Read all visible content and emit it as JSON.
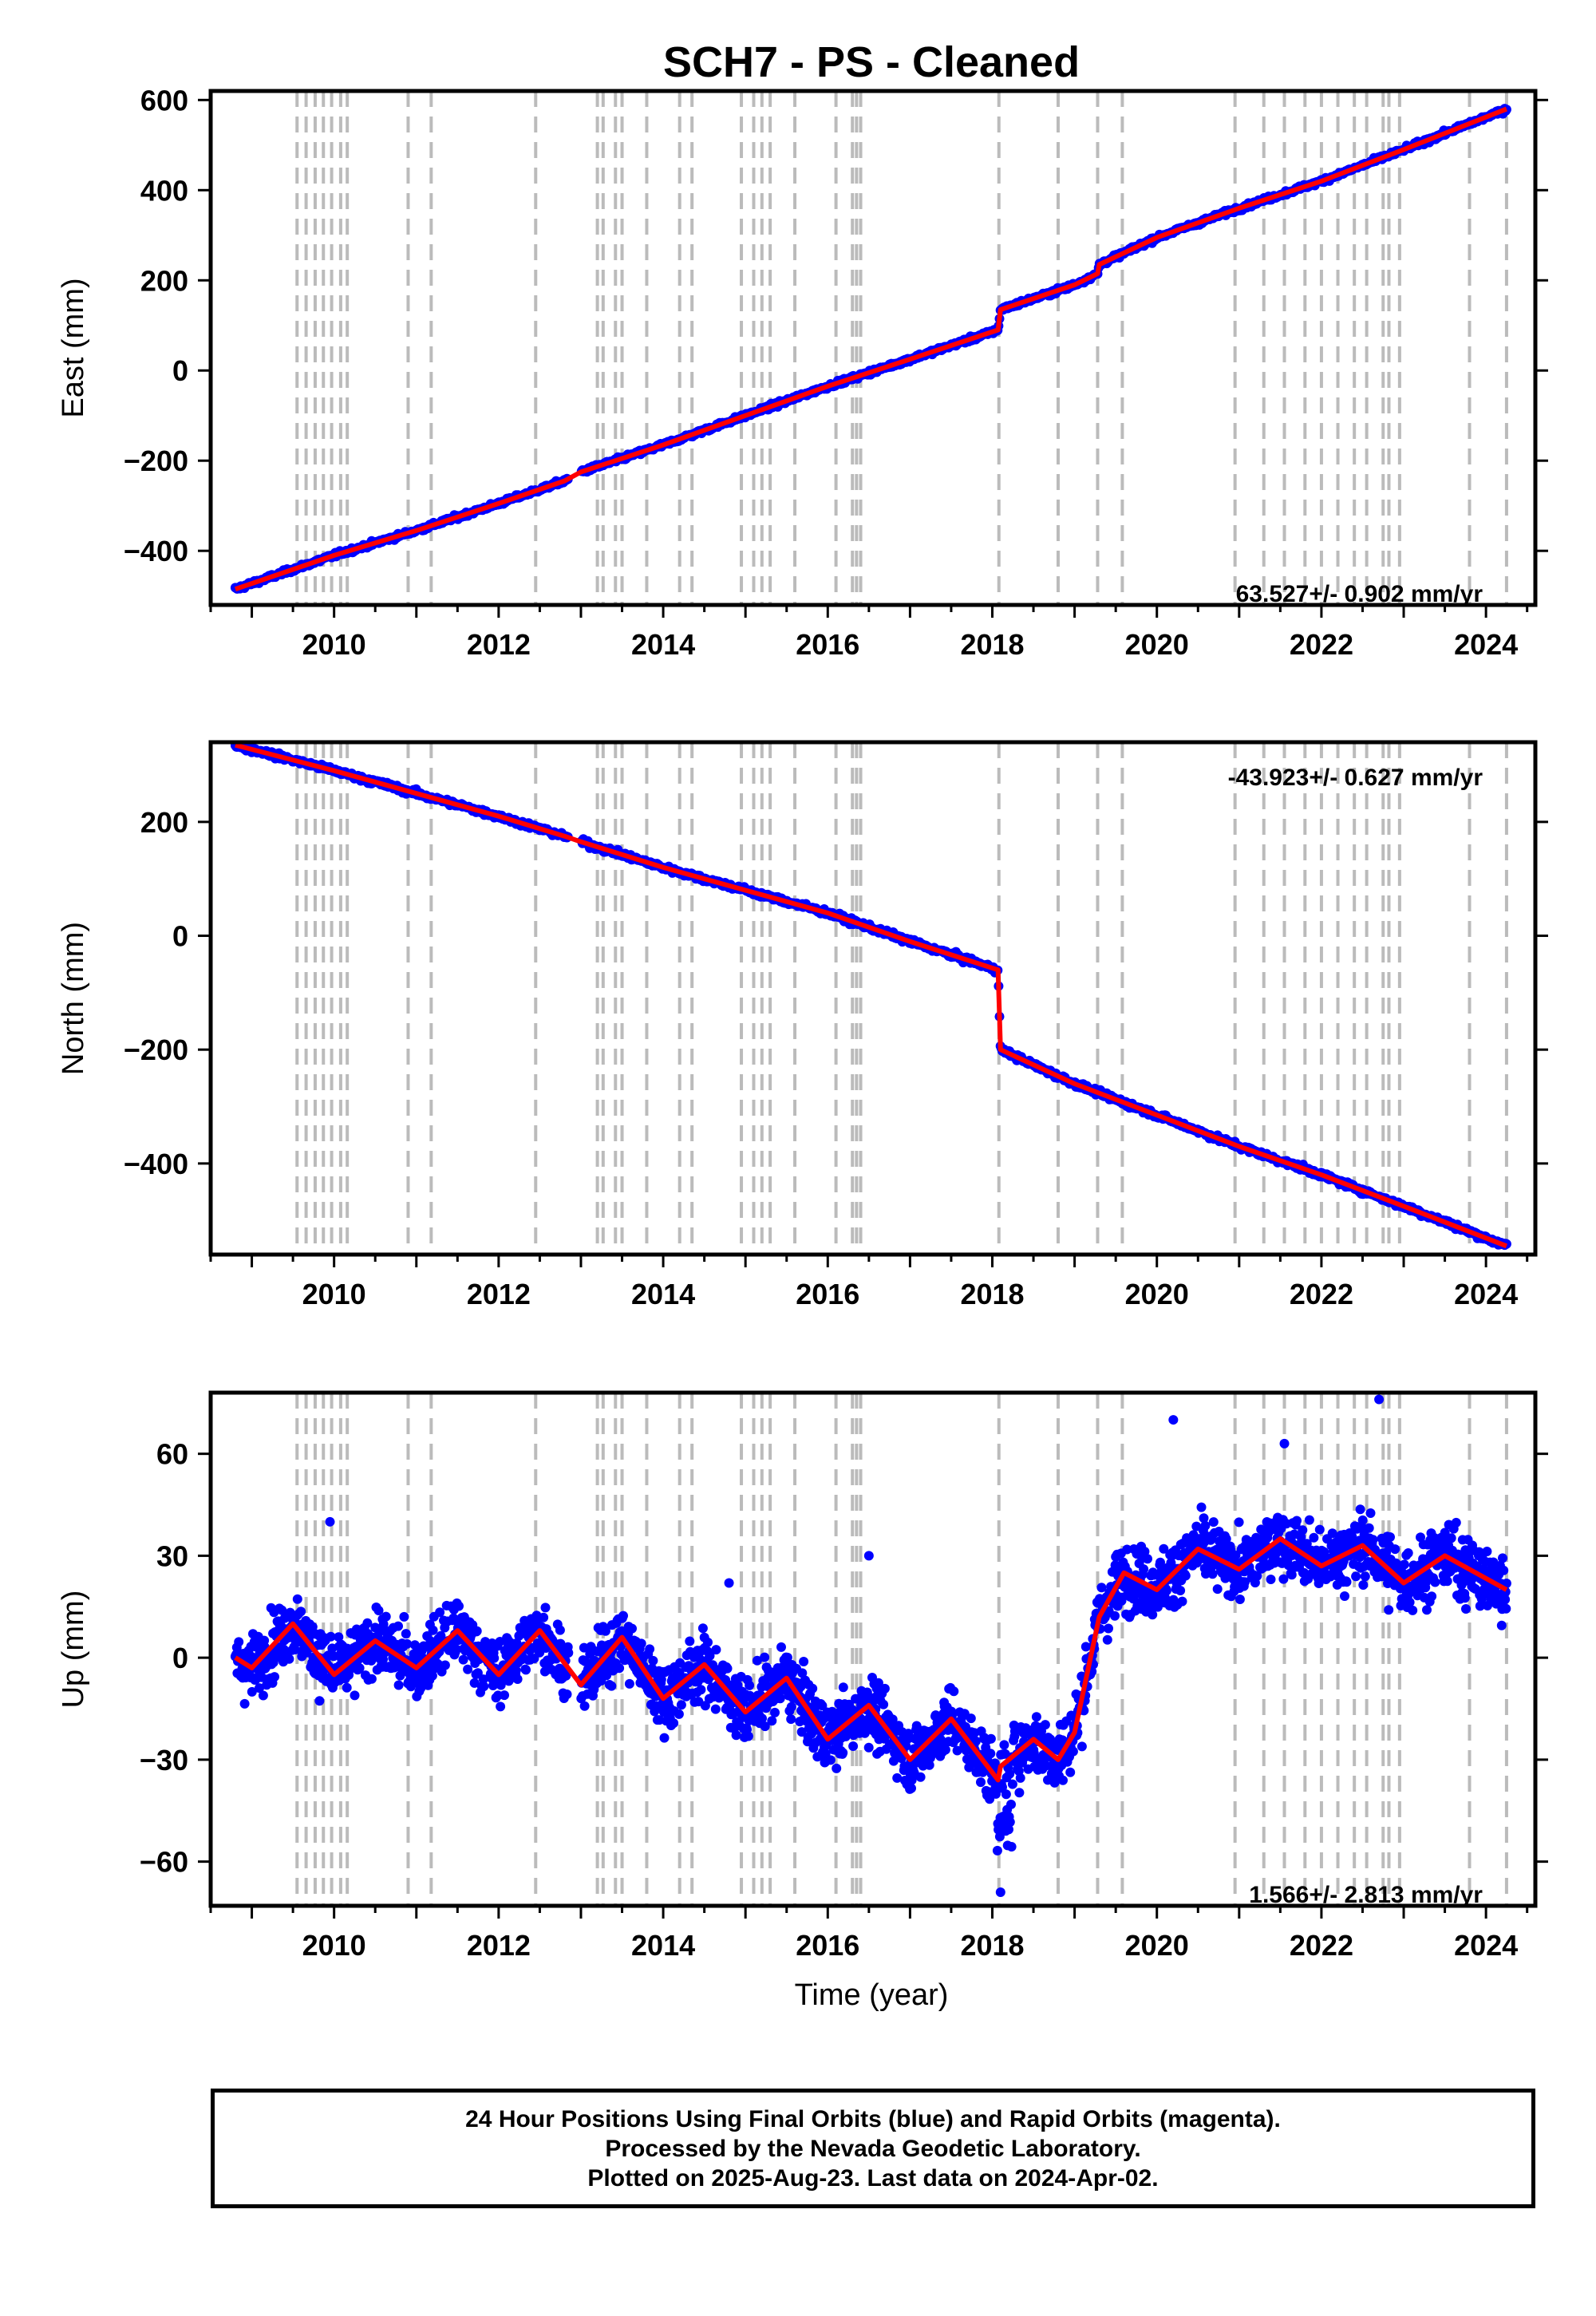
{
  "title": "SCH7  - PS - Cleaned",
  "xlabel": "Time (year)",
  "footer": {
    "line1": "24 Hour Positions Using Final Orbits (blue) and Rapid Orbits (magenta).",
    "line2": "Processed by the Nevada Geodetic Laboratory.",
    "line3": "Plotted on 2025-Aug-23. Last data on 2024-Apr-02."
  },
  "colors": {
    "data": "#0000ff",
    "model": "#ff0000",
    "steps": "#bbbbbb"
  },
  "chart_data": [
    {
      "type": "scatter",
      "panel": "east",
      "ylabel": "East (mm)",
      "rate_label": "63.527+/- 0.902 mm/yr",
      "xlim": [
        2008.5,
        2024.6
      ],
      "ylim": [
        -520,
        620
      ],
      "xticks": [
        2010,
        2012,
        2014,
        2016,
        2018,
        2020,
        2022,
        2024
      ],
      "yticks": [
        -400,
        -200,
        0,
        200,
        400,
        600
      ],
      "ytick_labels": [
        "−400",
        "−200",
        "0",
        "200",
        "400",
        "600"
      ],
      "x": [
        2008.8,
        2010.0,
        2011.0,
        2012.0,
        2012.8,
        2013.0,
        2014.0,
        2015.0,
        2016.0,
        2017.0,
        2018.07,
        2018.1,
        2019.0,
        2019.28,
        2019.3,
        2020.0,
        2021.0,
        2022.0,
        2023.0,
        2024.25
      ],
      "y": [
        -485,
        -410,
        -355,
        -295,
        -245,
        -225,
        -165,
        -100,
        -35,
        25,
        90,
        135,
        190,
        215,
        235,
        295,
        360,
        420,
        490,
        580
      ],
      "grid": false
    },
    {
      "type": "scatter",
      "panel": "north",
      "ylabel": "North (mm)",
      "rate_label": "-43.923+/- 0.627 mm/yr",
      "xlim": [
        2008.5,
        2024.6
      ],
      "ylim": [
        -560,
        340
      ],
      "xticks": [
        2010,
        2012,
        2014,
        2016,
        2018,
        2020,
        2022,
        2024
      ],
      "yticks": [
        -400,
        -200,
        0,
        200
      ],
      "ytick_labels": [
        "−400",
        "−200",
        "0",
        "200"
      ],
      "x": [
        2008.8,
        2010.0,
        2011.0,
        2012.0,
        2012.8,
        2013.0,
        2014.0,
        2015.0,
        2016.0,
        2017.0,
        2018.07,
        2018.1,
        2019.0,
        2020.0,
        2021.0,
        2022.0,
        2023.0,
        2024.25
      ],
      "y": [
        335,
        290,
        250,
        210,
        175,
        165,
        120,
        80,
        40,
        -10,
        -60,
        -200,
        -260,
        -315,
        -370,
        -420,
        -475,
        -545
      ],
      "grid": false
    },
    {
      "type": "scatter",
      "panel": "up",
      "ylabel": "Up (mm)",
      "rate_label": "1.566+/- 2.813 mm/yr",
      "xlim": [
        2008.5,
        2024.6
      ],
      "ylim": [
        -73,
        78
      ],
      "xticks": [
        2010,
        2012,
        2014,
        2016,
        2018,
        2020,
        2022,
        2024
      ],
      "yticks": [
        -60,
        -30,
        0,
        30,
        60
      ],
      "ytick_labels": [
        "−60",
        "−30",
        "0",
        "30",
        "60"
      ],
      "x": [
        2008.8,
        2009.0,
        2009.5,
        2010.0,
        2010.5,
        2011.0,
        2011.5,
        2012.0,
        2012.5,
        2013.0,
        2013.5,
        2014.0,
        2014.5,
        2015.0,
        2015.5,
        2016.0,
        2016.5,
        2017.0,
        2017.5,
        2018.07,
        2018.1,
        2018.5,
        2018.8,
        2019.0,
        2019.3,
        2019.6,
        2020.0,
        2020.5,
        2021.0,
        2021.5,
        2022.0,
        2022.5,
        2023.0,
        2023.5,
        2024.25
      ],
      "y": [
        0,
        -3,
        10,
        -5,
        5,
        -3,
        8,
        -5,
        8,
        -8,
        6,
        -12,
        -2,
        -16,
        -6,
        -24,
        -14,
        -30,
        -18,
        -36,
        -32,
        -24,
        -30,
        -22,
        12,
        25,
        20,
        32,
        26,
        35,
        27,
        33,
        22,
        30,
        20
      ],
      "grid": false
    }
  ]
}
